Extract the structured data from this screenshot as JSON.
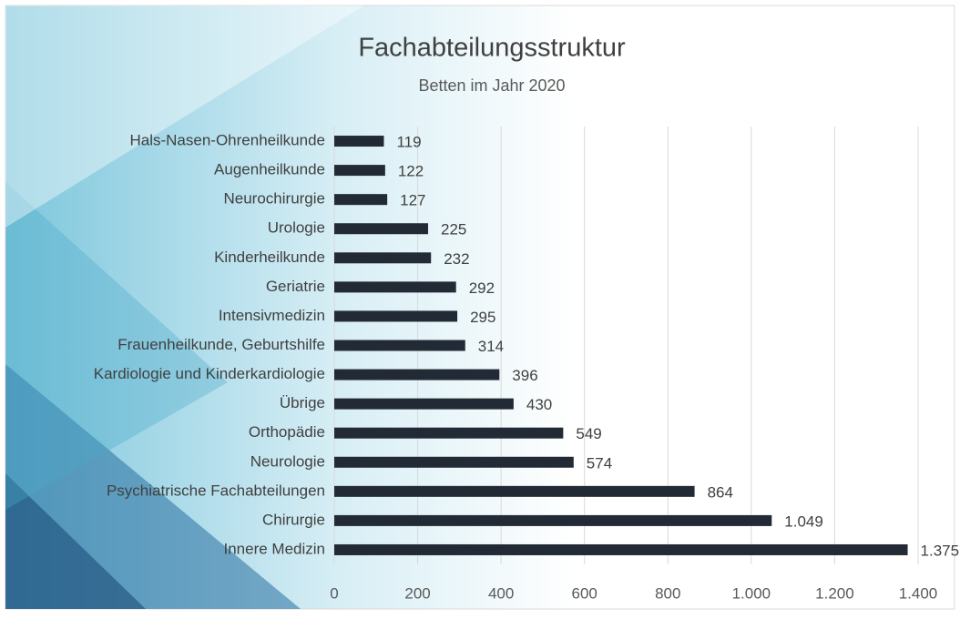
{
  "chart_data": {
    "type": "barh",
    "title": "Fachabteilungsstruktur",
    "subtitle": "Betten im Jahr 2020",
    "categories": [
      "Hals-Nasen-Ohrenheilkunde",
      "Augenheilkunde",
      "Neurochirurgie",
      "Urologie",
      "Kinderheilkunde",
      "Geriatrie",
      "Intensivmedizin",
      "Frauenheilkunde, Geburtshilfe",
      "Kardiologie und Kinderkardiologie",
      "Übrige",
      "Orthopädie",
      "Neurologie",
      "Psychiatrische Fachabteilungen",
      "Chirurgie",
      "Innere Medizin"
    ],
    "values": [
      119,
      122,
      127,
      225,
      232,
      292,
      295,
      314,
      396,
      430,
      549,
      574,
      864,
      1049,
      1375
    ],
    "value_labels": [
      "119",
      "122",
      "127",
      "225",
      "232",
      "292",
      "295",
      "314",
      "396",
      "430",
      "549",
      "574",
      "864",
      "1.049",
      "1.375"
    ],
    "color": "#222a35",
    "xlim": [
      0,
      1400
    ],
    "xticks": [
      0,
      200,
      400,
      600,
      800,
      {
        "value": 1000,
        "label": "1.000"
      },
      {
        "value": 1200,
        "label": "1.200"
      },
      {
        "value": 1400,
        "label": "1.400"
      }
    ],
    "grid": true
  }
}
